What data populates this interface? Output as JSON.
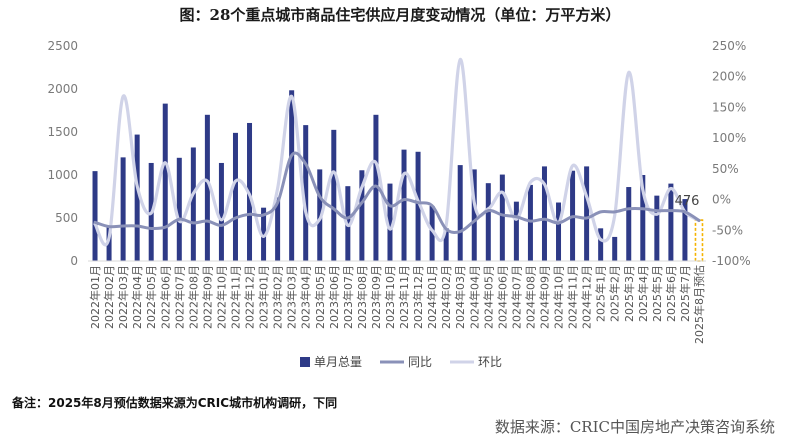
{
  "chart_data": {
    "type": "bar",
    "title": "图：28个重点城市商品住宅供应月度变动情况（单位：万平方米）",
    "categories": [
      "2022年01月",
      "2022年02月",
      "2022年03月",
      "2022年04月",
      "2022年05月",
      "2022年06月",
      "2022年07月",
      "2022年08月",
      "2022年09月",
      "2022年10月",
      "2022年11月",
      "2022年12月",
      "2023年01月",
      "2023年02月",
      "2023年03月",
      "2023年04月",
      "2023年05月",
      "2023年06月",
      "2023年07月",
      "2023年08月",
      "2023年09月",
      "2023年10月",
      "2023年11月",
      "2023年12月",
      "2024年01月",
      "2024年02月",
      "2024年03月",
      "2024年04月",
      "2024年05月",
      "2024年06月",
      "2024年07月",
      "2024年08月",
      "2024年09月",
      "2024年10月",
      "2024年11月",
      "2024年12月",
      "2025年1月",
      "2025年2月",
      "2025年3月",
      "2025年4月",
      "2025年5月",
      "2025年6月",
      "2025年7月",
      "2025年8月预估"
    ],
    "series": [
      {
        "name": "单月总量",
        "type": "bar",
        "axis": "left",
        "color": "#2e3a87",
        "values": [
          1045,
          400,
          1205,
          1470,
          1140,
          1830,
          1200,
          1320,
          1700,
          1140,
          1490,
          1605,
          620,
          740,
          1985,
          1580,
          1065,
          1525,
          870,
          1055,
          1700,
          900,
          1295,
          1270,
          640,
          380,
          1115,
          1065,
          905,
          1005,
          690,
          885,
          1100,
          680,
          1050,
          1100,
          380,
          280,
          860,
          1000,
          760,
          900,
          720,
          476
        ]
      },
      {
        "name": "同比",
        "type": "line",
        "axis": "right",
        "color": "#8a91b8",
        "values": [
          -37,
          -44,
          -43,
          -43,
          -47,
          -45,
          -32,
          -38,
          -35,
          -42,
          -30,
          -24,
          -25,
          -5,
          72,
          58,
          5,
          -15,
          -30,
          -5,
          22,
          -10,
          0,
          -5,
          -10,
          -48,
          -52,
          -35,
          -18,
          -25,
          -28,
          -35,
          -32,
          -38,
          -28,
          -30,
          -20,
          -20,
          -15,
          -15,
          -18,
          -18,
          -20,
          -34
        ]
      },
      {
        "name": "环比",
        "type": "line",
        "axis": "right",
        "color": "#d0d3e8",
        "values": [
          -40,
          -62,
          168,
          22,
          -22,
          60,
          -35,
          10,
          30,
          -33,
          30,
          8,
          -60,
          18,
          168,
          -20,
          -32,
          45,
          -42,
          20,
          60,
          -48,
          42,
          -2,
          -50,
          -42,
          228,
          -5,
          -15,
          12,
          -32,
          28,
          25,
          -38,
          55,
          5,
          -65,
          -26,
          207,
          16,
          -24,
          18,
          -20,
          -34
        ]
      }
    ],
    "left_axis": {
      "min": 0,
      "max": 2500,
      "ticks": [
        "0",
        "500",
        "1000",
        "1500",
        "2000",
        "2500"
      ]
    },
    "right_axis": {
      "min": -100,
      "max": 250,
      "ticks": [
        "-100%",
        "-50%",
        "0%",
        "50%",
        "100%",
        "150%",
        "200%",
        "250%"
      ]
    },
    "annotation": {
      "label": "476",
      "index": 43
    },
    "legend_position": "bottom",
    "grid": false
  },
  "note": "备注：2025年8月预估数据来源为CRIC城市机构调研，下同",
  "source": "数据来源：CRIC中国房地产决策咨询系统"
}
